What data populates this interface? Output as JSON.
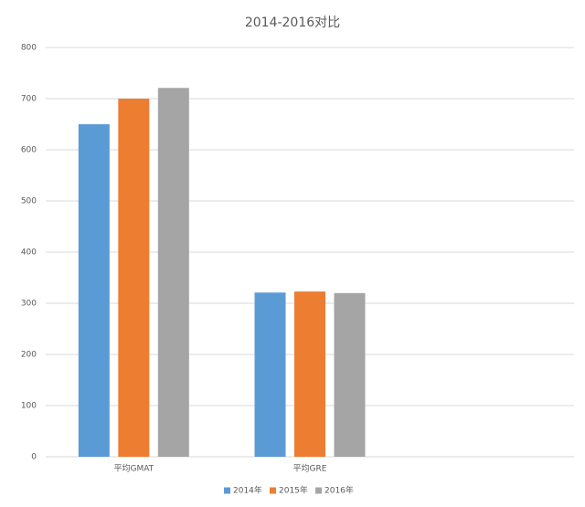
{
  "chart_data": {
    "type": "bar",
    "title": "2014-2016对比",
    "categories": [
      "平均GMAT",
      "平均GRE",
      null
    ],
    "series": [
      {
        "name": "2014年",
        "color": "#5b9bd5",
        "values": [
          650,
          321,
          null
        ]
      },
      {
        "name": "2015年",
        "color": "#ed7d31",
        "values": [
          700,
          323,
          null
        ]
      },
      {
        "name": "2016年",
        "color": "#a5a5a5",
        "values": [
          721,
          320,
          null
        ]
      }
    ],
    "ylim": [
      0,
      800
    ],
    "yticks": [
      0,
      100,
      200,
      300,
      400,
      500,
      600,
      700,
      800
    ],
    "grid": true,
    "legend": "bottom"
  }
}
